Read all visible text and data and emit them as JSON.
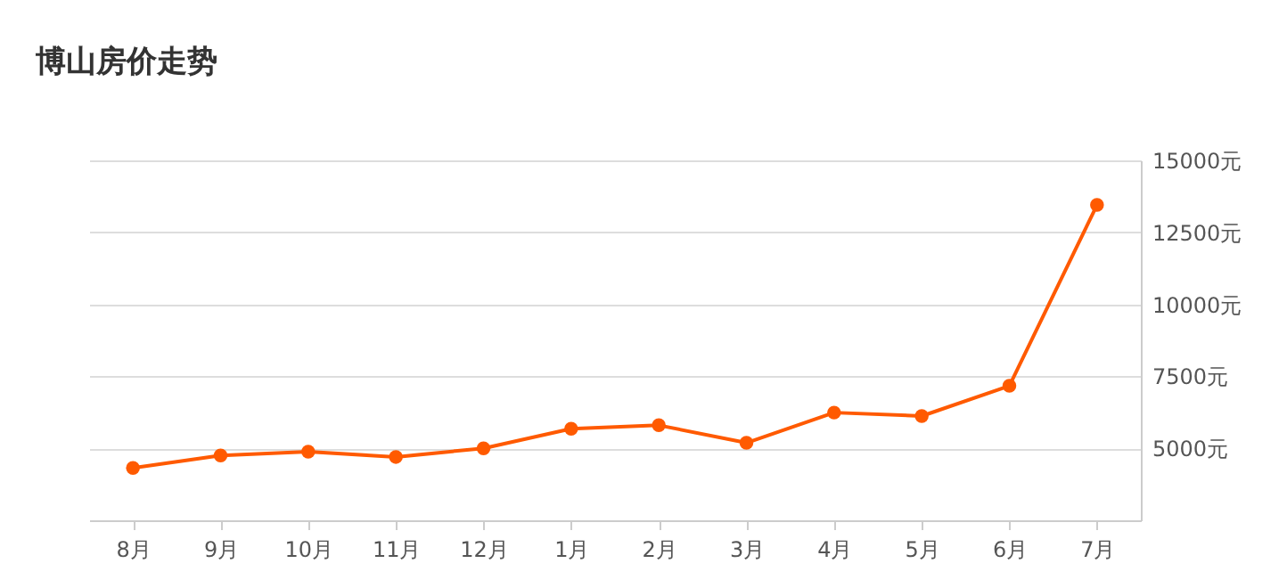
{
  "chart_data": {
    "type": "line",
    "title": "博山房价走势",
    "categories": [
      "8月",
      "9月",
      "10月",
      "11月",
      "12月",
      "1月",
      "2月",
      "3月",
      "4月",
      "5月",
      "6月",
      "7月"
    ],
    "series": [
      {
        "color": "#ff5a00",
        "values": [
          4320,
          4750,
          4880,
          4700,
          5000,
          5680,
          5800,
          5190,
          6240,
          6120,
          7170,
          13450
        ]
      }
    ],
    "ylim": [
      2500,
      15000
    ],
    "yticks": [
      {
        "value": 5000,
        "label": "5000元"
      },
      {
        "value": 7500,
        "label": "7500元"
      },
      {
        "value": 10000,
        "label": "10000元"
      },
      {
        "value": 12500,
        "label": "12500元"
      },
      {
        "value": 15000,
        "label": "15000元"
      }
    ],
    "grid": "y",
    "marker": "circle",
    "line_style": "solid"
  }
}
